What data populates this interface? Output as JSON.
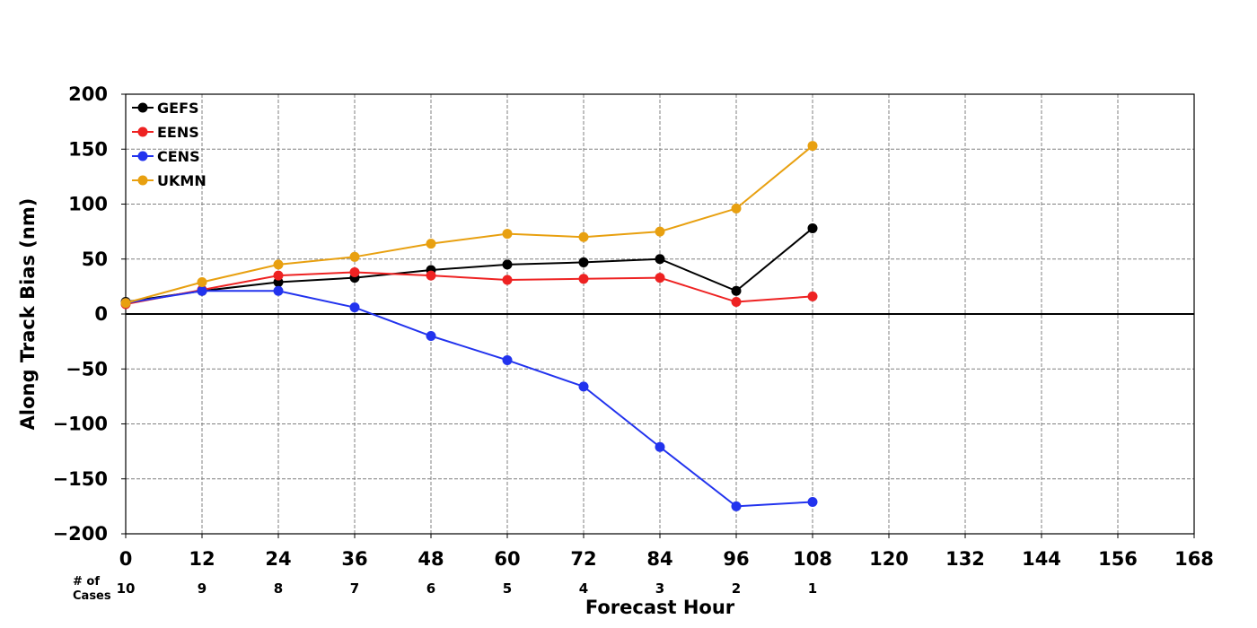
{
  "chart_data": {
    "type": "line",
    "xlabel": "Forecast Hour",
    "ylabel": "Along Track Bias (nm)",
    "xlim": [
      0,
      168
    ],
    "ylim": [
      -200,
      200
    ],
    "x_ticks": [
      0,
      12,
      24,
      36,
      48,
      60,
      72,
      84,
      96,
      108,
      120,
      132,
      144,
      156,
      168
    ],
    "y_ticks": [
      -200,
      -150,
      -100,
      -50,
      0,
      50,
      100,
      150,
      200
    ],
    "y_tick_labels": [
      "−200",
      "−150",
      "−100",
      "−50",
      "0",
      "50",
      "100",
      "150",
      "200"
    ],
    "grid": true,
    "legend_position": "top-left",
    "x": [
      0,
      12,
      24,
      36,
      48,
      60,
      72,
      84,
      96,
      108
    ],
    "series": [
      {
        "name": "GEFS",
        "color": "#000000",
        "values": [
          11,
          21,
          29,
          33,
          40,
          45,
          47,
          50,
          21,
          78
        ]
      },
      {
        "name": "EENS",
        "color": "#ee2222",
        "values": [
          9,
          22,
          35,
          38,
          35,
          31,
          32,
          33,
          11,
          16
        ]
      },
      {
        "name": "CENS",
        "color": "#2233ee",
        "values": [
          10,
          21,
          21,
          6,
          -20,
          -42,
          -66,
          -121,
          -175,
          -171
        ]
      },
      {
        "name": "UKMN",
        "color": "#e8a010",
        "values": [
          10,
          29,
          45,
          52,
          64,
          73,
          70,
          75,
          96,
          153
        ]
      }
    ],
    "cases_label_line1": "# of",
    "cases_label_line2": "Cases",
    "cases": [
      {
        "x": 0,
        "n": "10"
      },
      {
        "x": 12,
        "n": "9"
      },
      {
        "x": 24,
        "n": "8"
      },
      {
        "x": 36,
        "n": "7"
      },
      {
        "x": 48,
        "n": "6"
      },
      {
        "x": 60,
        "n": "5"
      },
      {
        "x": 72,
        "n": "4"
      },
      {
        "x": 84,
        "n": "3"
      },
      {
        "x": 96,
        "n": "2"
      },
      {
        "x": 108,
        "n": "1"
      }
    ]
  }
}
